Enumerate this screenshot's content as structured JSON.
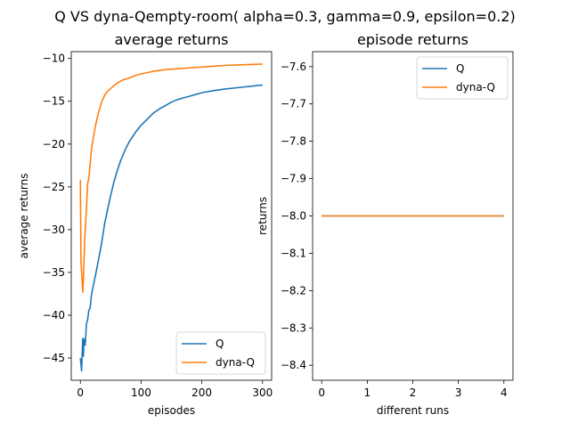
{
  "suptitle": "Q VS dyna-Qempty-room( alpha=0.3, gamma=0.9, epsilon=0.2)",
  "colors": {
    "Q": "#1f77b4",
    "dyna-Q": "#ff7f0e"
  },
  "chart_data": [
    {
      "type": "line",
      "title": "average returns",
      "xlabel": "episodes",
      "ylabel": "average returns",
      "xlim": [
        -15,
        315
      ],
      "ylim": [
        -47.6,
        -9.2
      ],
      "xticks": [
        0,
        100,
        200,
        300
      ],
      "yticks": [
        -45,
        -40,
        -35,
        -30,
        -25,
        -20,
        -15,
        -10
      ],
      "xtick_labels": [
        "0",
        "100",
        "200",
        "300"
      ],
      "ytick_labels": [
        "−45",
        "−40",
        "−35",
        "−30",
        "−25",
        "−20",
        "−15",
        "−10"
      ],
      "legend": "lower-right",
      "grid": false,
      "series": [
        {
          "name": "Q",
          "x": [
            0,
            2,
            4,
            5,
            6,
            8,
            10,
            12,
            14,
            16,
            18,
            20,
            25,
            30,
            35,
            40,
            45,
            50,
            55,
            60,
            65,
            70,
            75,
            80,
            90,
            100,
            110,
            120,
            130,
            140,
            150,
            160,
            170,
            180,
            190,
            200,
            220,
            240,
            260,
            280,
            300
          ],
          "y": [
            -45,
            -46.5,
            -42.7,
            -44.8,
            -42.8,
            -43.5,
            -41,
            -40.5,
            -39.4,
            -39.2,
            -37.8,
            -37,
            -35.3,
            -33.5,
            -31.6,
            -29.3,
            -27.6,
            -26,
            -24.5,
            -23.3,
            -22.2,
            -21.3,
            -20.5,
            -19.8,
            -18.7,
            -17.8,
            -17.1,
            -16.4,
            -15.9,
            -15.5,
            -15.1,
            -14.8,
            -14.6,
            -14.4,
            -14.2,
            -14.0,
            -13.75,
            -13.55,
            -13.4,
            -13.25,
            -13.1
          ]
        },
        {
          "name": "dyna-Q",
          "x": [
            0,
            1,
            2,
            4,
            5,
            6,
            8,
            10,
            12,
            14,
            16,
            18,
            20,
            25,
            30,
            35,
            40,
            45,
            50,
            60,
            70,
            80,
            90,
            100,
            120,
            140,
            160,
            180,
            200,
            220,
            240,
            260,
            280,
            300
          ],
          "y": [
            -24.2,
            -33.6,
            -34.9,
            -37.3,
            -36,
            -33.5,
            -30,
            -27.6,
            -24.6,
            -24,
            -22.4,
            -20.8,
            -19.8,
            -17.8,
            -16.3,
            -15.1,
            -14.3,
            -13.8,
            -13.5,
            -12.9,
            -12.5,
            -12.3,
            -12.0,
            -11.8,
            -11.5,
            -11.3,
            -11.2,
            -11.1,
            -11.0,
            -10.9,
            -10.8,
            -10.75,
            -10.7,
            -10.65
          ]
        }
      ]
    },
    {
      "type": "line",
      "title": "episode returns",
      "xlabel": "different runs",
      "ylabel": "returns",
      "xlim": [
        -0.2,
        4.2
      ],
      "ylim": [
        -8.44,
        -7.56
      ],
      "xticks": [
        0,
        1,
        2,
        3,
        4
      ],
      "yticks": [
        -8.4,
        -8.3,
        -8.2,
        -8.1,
        -8.0,
        -7.9,
        -7.8,
        -7.7,
        -7.6
      ],
      "xtick_labels": [
        "0",
        "1",
        "2",
        "3",
        "4"
      ],
      "ytick_labels": [
        "−8.4",
        "−8.3",
        "−8.2",
        "−8.1",
        "−8.0",
        "−7.9",
        "−7.8",
        "−7.7",
        "−7.6"
      ],
      "legend": "upper-right",
      "grid": false,
      "series": [
        {
          "name": "Q",
          "x": [
            0,
            1,
            2,
            3,
            4
          ],
          "y": [
            -8,
            -8,
            -8,
            -8,
            -8
          ]
        },
        {
          "name": "dyna-Q",
          "x": [
            0,
            1,
            2,
            3,
            4
          ],
          "y": [
            -8,
            -8,
            -8,
            -8,
            -8
          ]
        }
      ]
    }
  ]
}
